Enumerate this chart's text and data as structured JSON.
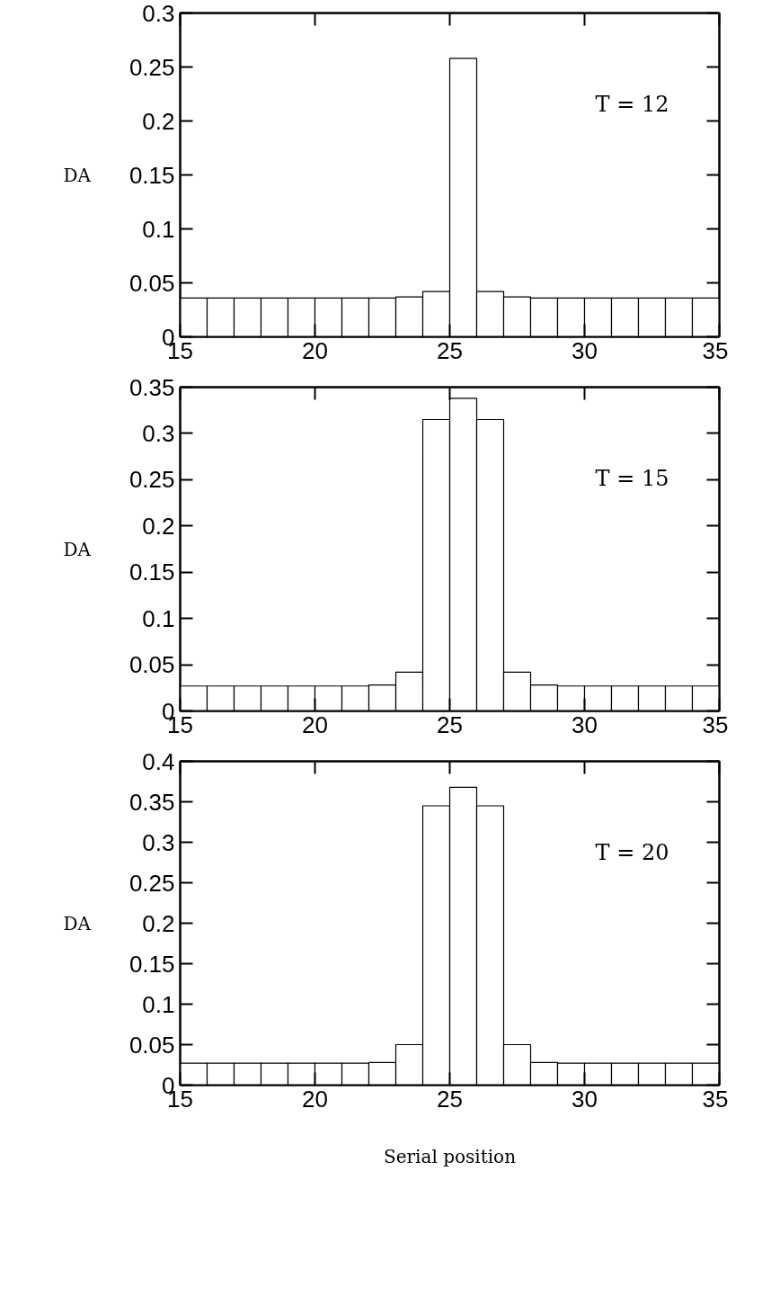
{
  "chart_data": [
    {
      "type": "histogram",
      "ylabel": "DA",
      "annotations": [
        "T = 12"
      ],
      "color": "#ffffff",
      "bins": [
        15,
        16,
        17,
        18,
        19,
        20,
        21,
        22,
        23,
        24,
        25,
        26,
        27,
        28,
        29,
        30,
        31,
        32,
        33,
        34,
        35
      ],
      "values": [
        0.036,
        0.036,
        0.036,
        0.036,
        0.036,
        0.036,
        0.036,
        0.036,
        0.037,
        0.042,
        0.258,
        0.042,
        0.037,
        0.036,
        0.036,
        0.036,
        0.036,
        0.036,
        0.036,
        0.036
      ],
      "xlim": [
        15,
        35
      ],
      "xticks": [
        15,
        20,
        25,
        30,
        35
      ],
      "ylim": [
        0,
        0.3
      ],
      "yticks": [
        0,
        0.05,
        0.1,
        0.15,
        0.2,
        0.25,
        0.3
      ]
    },
    {
      "type": "histogram",
      "ylabel": "DA",
      "annotations": [
        "T = 15"
      ],
      "color": "#ffffff",
      "bins": [
        15,
        16,
        17,
        18,
        19,
        20,
        21,
        22,
        23,
        24,
        25,
        26,
        27,
        28,
        29,
        30,
        31,
        32,
        33,
        34,
        35
      ],
      "values": [
        0.027,
        0.027,
        0.027,
        0.027,
        0.027,
        0.027,
        0.027,
        0.028,
        0.042,
        0.315,
        0.338,
        0.315,
        0.042,
        0.028,
        0.027,
        0.027,
        0.027,
        0.027,
        0.027,
        0.027
      ],
      "xlim": [
        15,
        35
      ],
      "xticks": [
        15,
        20,
        25,
        30,
        35
      ],
      "ylim": [
        0,
        0.35
      ],
      "yticks": [
        0,
        0.05,
        0.1,
        0.15,
        0.2,
        0.25,
        0.3,
        0.35
      ]
    },
    {
      "type": "histogram",
      "ylabel": "DA",
      "xlabel": "Serial position",
      "annotations": [
        "T = 20"
      ],
      "color": "#ffffff",
      "bins": [
        15,
        16,
        17,
        18,
        19,
        20,
        21,
        22,
        23,
        24,
        25,
        26,
        27,
        28,
        29,
        30,
        31,
        32,
        33,
        34,
        35
      ],
      "values": [
        0.027,
        0.027,
        0.027,
        0.027,
        0.027,
        0.027,
        0.027,
        0.028,
        0.05,
        0.345,
        0.368,
        0.345,
        0.05,
        0.028,
        0.027,
        0.027,
        0.027,
        0.027,
        0.027,
        0.027
      ],
      "xlim": [
        15,
        35
      ],
      "xticks": [
        15,
        20,
        25,
        30,
        35
      ],
      "ylim": [
        0,
        0.4
      ],
      "yticks": [
        0,
        0.05,
        0.1,
        0.15,
        0.2,
        0.25,
        0.3,
        0.35,
        0.4
      ]
    }
  ]
}
